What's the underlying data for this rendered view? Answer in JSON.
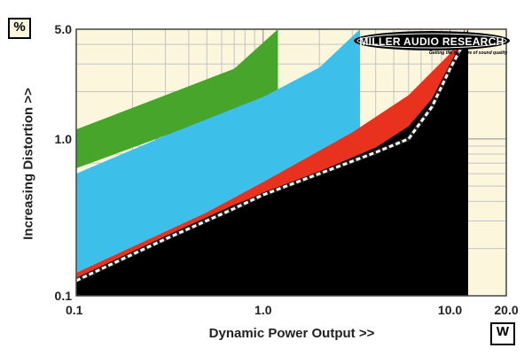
{
  "chart_data": {
    "type": "area",
    "title": "",
    "xlabel": "Dynamic Power Output >>",
    "ylabel": "Increasing Distortion >>",
    "x_unit": "W",
    "y_unit": "%",
    "xscale": "log",
    "yscale": "log",
    "xlim": [
      0.1,
      20.0
    ],
    "ylim": [
      0.1,
      5.0
    ],
    "xticks": [
      "0.1",
      "1.0",
      "10.0",
      "20.0"
    ],
    "yticks": [
      "0.1",
      "1.0",
      "5.0"
    ],
    "grid": true,
    "logo": {
      "name": "MILLER AUDIO RESEARCH",
      "tagline": "Getting the measure of sound quality"
    },
    "series": [
      {
        "color": "#47a52b",
        "x": [
          0.1,
          0.3,
          0.7,
          1.2,
          1.2
        ],
        "y_low": [
          0.65,
          1.05,
          1.5,
          1.9,
          1.9
        ],
        "y_high": [
          1.15,
          1.9,
          2.8,
          5.0,
          5.0
        ]
      },
      {
        "color": "#3cc0ea",
        "x": [
          0.1,
          0.3,
          1.0,
          2.0,
          3.3,
          3.3
        ],
        "y_low": [
          0.14,
          0.25,
          0.5,
          0.72,
          1.05,
          1.05
        ],
        "y_high": [
          0.6,
          1.05,
          1.85,
          2.85,
          5.0,
          5.0
        ]
      },
      {
        "color": "#e8321e",
        "x": [
          0.1,
          0.5,
          1.0,
          3.0,
          6.0,
          10.0,
          12.0,
          12.0,
          16.0,
          16.0
        ],
        "y_low": [
          0.13,
          0.3,
          0.45,
          0.72,
          0.95,
          2.2,
          4.5,
          5.0,
          5.0,
          0.1
        ],
        "y_high": [
          0.14,
          0.34,
          0.53,
          1.1,
          1.9,
          3.5,
          5.0,
          5.0,
          5.0,
          5.0
        ]
      },
      {
        "color": "#000000",
        "x": [
          0.1,
          0.3,
          0.7,
          1.0,
          2.0,
          4.0,
          6.0,
          8.0,
          10.0,
          12.5,
          12.5
        ],
        "y_low": [
          0.1,
          0.1,
          0.1,
          0.1,
          0.1,
          0.1,
          0.1,
          0.1,
          0.1,
          0.1,
          0.1
        ],
        "y_high": [
          0.13,
          0.24,
          0.38,
          0.45,
          0.62,
          0.88,
          1.2,
          1.8,
          3.0,
          5.0,
          0.1
        ]
      },
      {
        "color": "#ffffff",
        "style": "dashed",
        "x": [
          0.1,
          0.3,
          0.7,
          1.0,
          2.0,
          4.0,
          6.0,
          8.0,
          10.0,
          12.0
        ],
        "y": [
          0.125,
          0.23,
          0.36,
          0.44,
          0.6,
          0.82,
          1.0,
          1.6,
          2.8,
          4.2
        ]
      }
    ]
  }
}
